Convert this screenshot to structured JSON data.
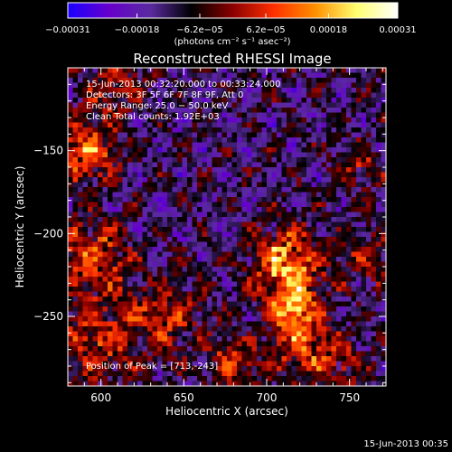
{
  "chart_data": {
    "type": "heatmap",
    "title": "Reconstructed RHESSI Image",
    "xlabel": "Heliocentric X (arcsec)",
    "ylabel": "Heliocentric Y (arcsec)",
    "xlim": [
      580,
      772
    ],
    "ylim": [
      -292,
      -100
    ],
    "x_ticks": [
      600,
      650,
      700,
      750
    ],
    "y_ticks": [
      -150,
      -200,
      -250
    ],
    "x_tick_labels": [
      "600",
      "650",
      "700",
      "750"
    ],
    "y_tick_labels": [
      "−150",
      "−200",
      "−250"
    ],
    "colorbar": {
      "range": [
        -0.00031,
        0.00031
      ],
      "tick_values": [
        -0.00031,
        -0.00018,
        -6.2e-05,
        6.2e-05,
        0.00018,
        0.00031
      ],
      "tick_labels": [
        "−0.00031",
        "−0.00018",
        "−6.2e−05",
        "6.2e−05",
        "0.00018",
        "0.00031"
      ],
      "units_label": "(photons cm⁻² s⁻¹ asec⁻²)",
      "colors": [
        "#1a00ff",
        "#6600cc",
        "#5a2aa0",
        "#000000",
        "#8b0000",
        "#ff3000",
        "#ff9000",
        "#ffff70",
        "#ffffff"
      ]
    },
    "annotations": {
      "time_range": "15-Jun-2013 00:32:20.000 to 00:33:24.000",
      "detectors": "Detectors: 3F 5F 6F 7F 8F 9F, Att 0",
      "energy": "Energy Range: 25.0 − 50.0 keV",
      "clean": "Clean    Total counts: 1.92E+03",
      "peak": "Position of Peak = [713,-243]"
    },
    "peak": {
      "x": 713,
      "y": -243
    },
    "emission_regions": [
      {
        "x": 712,
        "y": -218,
        "sigma": 14,
        "amp": 0.00031
      },
      {
        "x": 716,
        "y": -245,
        "sigma": 10,
        "amp": 0.00028
      },
      {
        "x": 722,
        "y": -268,
        "sigma": 12,
        "amp": 0.0002
      },
      {
        "x": 590,
        "y": -150,
        "sigma": 14,
        "amp": 0.00024
      },
      {
        "x": 595,
        "y": -215,
        "sigma": 16,
        "amp": 0.0002
      },
      {
        "x": 598,
        "y": -265,
        "sigma": 16,
        "amp": 0.00018
      },
      {
        "x": 640,
        "y": -250,
        "sigma": 15,
        "amp": 0.00016
      },
      {
        "x": 610,
        "y": -110,
        "sigma": 12,
        "amp": 0.00014
      },
      {
        "x": 680,
        "y": -280,
        "sigma": 12,
        "amp": 0.00016
      },
      {
        "x": 755,
        "y": -160,
        "sigma": 10,
        "amp": 0.00012
      },
      {
        "x": 760,
        "y": -215,
        "sigma": 12,
        "amp": 0.00012
      },
      {
        "x": 745,
        "y": -280,
        "sigma": 12,
        "amp": 0.00012
      }
    ]
  },
  "footer": {
    "timestamp": "15-Jun-2013 00:35"
  }
}
